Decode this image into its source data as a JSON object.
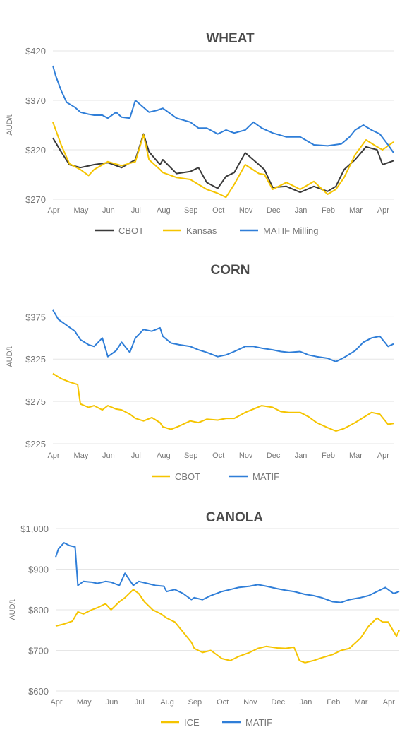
{
  "chart_data": [
    {
      "type": "line",
      "title": "WHEAT",
      "ylabel": "AUD/t",
      "ylim": [
        270,
        420
      ],
      "yticks": [
        "$420",
        "$370",
        "$320",
        "$270"
      ],
      "ytick_values": [
        420,
        370,
        320,
        270
      ],
      "months": [
        "Apr",
        "May",
        "Jun",
        "Jul",
        "Aug",
        "Sep",
        "Oct",
        "Nov",
        "Dec",
        "Jan",
        "Feb",
        "Mar",
        "Apr"
      ],
      "legend_position": "bottom",
      "grid": true,
      "series": [
        {
          "name": "CBOT",
          "color": "#3a3a3a",
          "x": [
            0,
            0.3,
            0.6,
            1.0,
            1.5,
            2.0,
            2.5,
            3.0,
            3.3,
            3.5,
            3.9,
            4.0,
            4.5,
            5.0,
            5.3,
            5.6,
            6.0,
            6.3,
            6.6,
            7.0,
            7.5,
            7.7,
            8.0,
            8.5,
            9.0,
            9.5,
            10.0,
            10.3,
            10.6,
            11.0,
            11.4,
            11.8,
            12.0,
            12.4
          ],
          "y": [
            332,
            318,
            305,
            302,
            305,
            307,
            302,
            310,
            336,
            318,
            305,
            310,
            296,
            298,
            302,
            287,
            281,
            293,
            297,
            317,
            305,
            300,
            282,
            283,
            277,
            283,
            278,
            283,
            300,
            310,
            323,
            320,
            305,
            309
          ]
        },
        {
          "name": "Kansas",
          "color": "#f5c400",
          "x": [
            0,
            0.3,
            0.6,
            1.0,
            1.3,
            1.5,
            2.0,
            2.5,
            3.0,
            3.3,
            3.5,
            3.9,
            4.0,
            4.5,
            5.0,
            5.3,
            5.6,
            6.0,
            6.3,
            6.6,
            7.0,
            7.5,
            7.7,
            8.0,
            8.5,
            9.0,
            9.5,
            10.0,
            10.3,
            10.6,
            11.0,
            11.4,
            11.8,
            12.0,
            12.4
          ],
          "y": [
            348,
            325,
            306,
            300,
            294,
            300,
            308,
            304,
            308,
            335,
            310,
            300,
            297,
            292,
            290,
            285,
            280,
            276,
            272,
            285,
            305,
            296,
            295,
            280,
            287,
            280,
            288,
            275,
            280,
            292,
            315,
            330,
            323,
            320,
            328
          ]
        },
        {
          "name": "MATIF Milling",
          "color": "#2f7ed8",
          "x": [
            0,
            0.1,
            0.3,
            0.5,
            0.8,
            1.0,
            1.3,
            1.5,
            1.8,
            2.0,
            2.3,
            2.5,
            2.8,
            3.0,
            3.5,
            3.8,
            4.0,
            4.5,
            5.0,
            5.3,
            5.6,
            6.0,
            6.3,
            6.6,
            7.0,
            7.3,
            7.6,
            8.0,
            8.5,
            9.0,
            9.5,
            10.0,
            10.5,
            10.8,
            11.0,
            11.3,
            11.6,
            11.9,
            12.2,
            12.4
          ],
          "y": [
            405,
            395,
            380,
            368,
            363,
            358,
            356,
            355,
            355,
            352,
            358,
            353,
            352,
            370,
            358,
            360,
            362,
            352,
            348,
            342,
            342,
            336,
            340,
            337,
            340,
            348,
            342,
            337,
            333,
            333,
            325,
            324,
            326,
            333,
            340,
            345,
            340,
            336,
            325,
            317
          ]
        }
      ]
    },
    {
      "type": "line",
      "title": "CORN",
      "ylabel": "AUD/t",
      "ylim": [
        225,
        387
      ],
      "yticks": [
        "$375",
        "$325",
        "$275",
        "$225"
      ],
      "ytick_values": [
        375,
        325,
        275,
        225
      ],
      "months": [
        "Apr",
        "May",
        "Jun",
        "Jul",
        "Aug",
        "Sep",
        "Oct",
        "Nov",
        "Dec",
        "Jan",
        "Feb",
        "Mar",
        "Apr"
      ],
      "legend_position": "bottom",
      "grid": true,
      "series": [
        {
          "name": "CBOT",
          "color": "#f5c400",
          "x": [
            0,
            0.3,
            0.6,
            0.9,
            1.0,
            1.3,
            1.5,
            1.8,
            2.0,
            2.3,
            2.5,
            2.8,
            3.0,
            3.3,
            3.6,
            3.9,
            4.0,
            4.3,
            4.6,
            5.0,
            5.3,
            5.6,
            6.0,
            6.3,
            6.6,
            7.0,
            7.3,
            7.6,
            8.0,
            8.3,
            8.6,
            9.0,
            9.3,
            9.6,
            10.0,
            10.3,
            10.6,
            11.0,
            11.3,
            11.6,
            11.9,
            12.2,
            12.4
          ],
          "y": [
            308,
            302,
            298,
            295,
            272,
            268,
            270,
            265,
            270,
            266,
            265,
            260,
            255,
            252,
            256,
            250,
            245,
            242,
            246,
            252,
            250,
            254,
            253,
            255,
            255,
            262,
            266,
            270,
            268,
            263,
            262,
            262,
            257,
            250,
            244,
            240,
            243,
            250,
            256,
            262,
            260,
            248,
            249
          ]
        },
        {
          "name": "MATIF",
          "color": "#2f7ed8",
          "x": [
            0,
            0.2,
            0.5,
            0.8,
            1.0,
            1.3,
            1.5,
            1.8,
            2.0,
            2.3,
            2.5,
            2.8,
            3.0,
            3.3,
            3.6,
            3.9,
            4.0,
            4.3,
            4.6,
            5.0,
            5.3,
            5.6,
            6.0,
            6.3,
            6.6,
            7.0,
            7.3,
            7.6,
            8.0,
            8.3,
            8.6,
            9.0,
            9.3,
            9.6,
            10.0,
            10.3,
            10.6,
            11.0,
            11.3,
            11.6,
            11.9,
            12.2,
            12.4
          ],
          "y": [
            383,
            372,
            365,
            358,
            348,
            342,
            340,
            350,
            328,
            335,
            345,
            333,
            350,
            360,
            358,
            362,
            352,
            344,
            342,
            340,
            336,
            333,
            328,
            330,
            334,
            340,
            340,
            338,
            336,
            334,
            333,
            334,
            330,
            328,
            326,
            322,
            327,
            335,
            345,
            350,
            352,
            340,
            343
          ]
        }
      ]
    },
    {
      "type": "line",
      "title": "CANOLA",
      "ylabel": "AUD/t",
      "ylim": [
        600,
        1000
      ],
      "yticks": [
        "$1,000",
        "$900",
        "$800",
        "$700",
        "$600"
      ],
      "ytick_values": [
        1000,
        900,
        800,
        700,
        600
      ],
      "months": [
        "Apr",
        "May",
        "Jun",
        "Jul",
        "Aug",
        "Sep",
        "Oct",
        "Nov",
        "Dec",
        "Jan",
        "Feb",
        "Mar",
        "Apr"
      ],
      "legend_position": "bottom",
      "grid": true,
      "series": [
        {
          "name": "ICE",
          "color": "#f5c400",
          "x": [
            0,
            0.3,
            0.6,
            0.8,
            1.0,
            1.3,
            1.5,
            1.8,
            2.0,
            2.3,
            2.5,
            2.8,
            3.0,
            3.2,
            3.5,
            3.8,
            4.0,
            4.3,
            4.6,
            4.9,
            5.0,
            5.3,
            5.6,
            6.0,
            6.3,
            6.6,
            7.0,
            7.3,
            7.6,
            8.0,
            8.3,
            8.6,
            8.8,
            9.0,
            9.3,
            9.6,
            10.0,
            10.3,
            10.6,
            11.0,
            11.3,
            11.6,
            11.8,
            12.0,
            12.3,
            12.4
          ],
          "y": [
            760,
            765,
            772,
            795,
            790,
            800,
            805,
            815,
            800,
            820,
            830,
            850,
            840,
            820,
            800,
            790,
            780,
            770,
            745,
            720,
            705,
            695,
            700,
            680,
            675,
            685,
            695,
            705,
            710,
            706,
            705,
            708,
            675,
            670,
            675,
            682,
            690,
            700,
            705,
            730,
            760,
            780,
            770,
            770,
            735,
            750
          ]
        },
        {
          "name": "MATIF",
          "color": "#2f7ed8",
          "x": [
            0,
            0.1,
            0.3,
            0.5,
            0.7,
            0.8,
            1.0,
            1.3,
            1.5,
            1.8,
            2.0,
            2.3,
            2.5,
            2.8,
            3.0,
            3.3,
            3.6,
            3.9,
            4.0,
            4.3,
            4.6,
            4.9,
            5.0,
            5.3,
            5.6,
            6.0,
            6.3,
            6.6,
            7.0,
            7.3,
            7.6,
            8.0,
            8.3,
            8.6,
            9.0,
            9.3,
            9.6,
            10.0,
            10.3,
            10.6,
            11.0,
            11.3,
            11.6,
            11.9,
            12.2,
            12.4
          ],
          "y": [
            930,
            950,
            965,
            958,
            955,
            860,
            870,
            868,
            865,
            870,
            868,
            860,
            890,
            860,
            870,
            865,
            860,
            858,
            845,
            850,
            840,
            825,
            830,
            825,
            835,
            845,
            850,
            855,
            858,
            862,
            858,
            852,
            848,
            845,
            838,
            835,
            830,
            820,
            818,
            825,
            830,
            835,
            845,
            855,
            840,
            845
          ]
        }
      ]
    }
  ]
}
